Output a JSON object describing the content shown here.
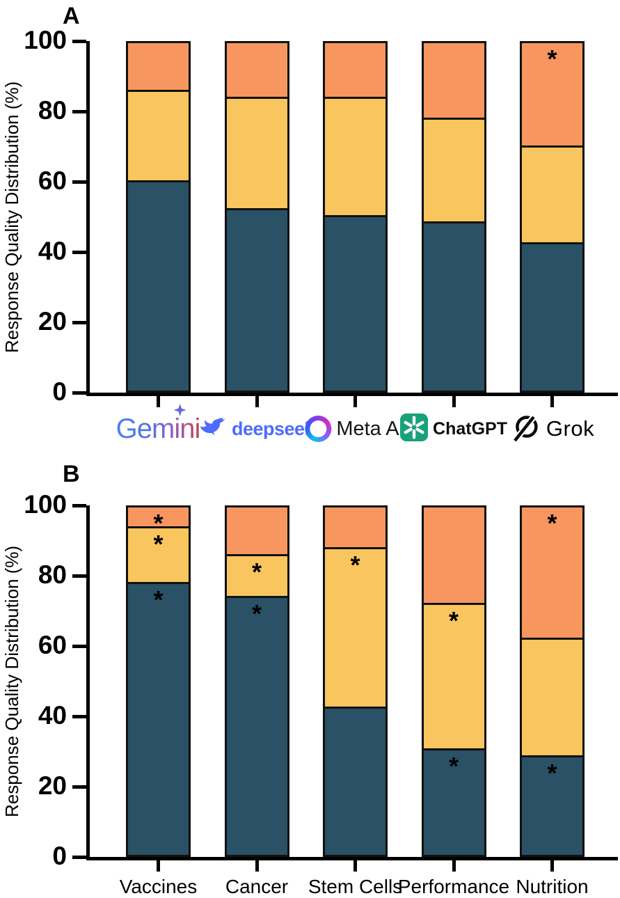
{
  "figure": {
    "panel_a_label": "A",
    "panel_b_label": "B",
    "y_axis_label": "Response Quality Distribution (%)",
    "y_ticks": [
      0,
      20,
      40,
      60,
      80,
      100
    ],
    "significance_marker": "*",
    "colors": {
      "segment_bottom": "#2A5165",
      "segment_middle": "#F9C55F",
      "segment_top": "#F7975F",
      "bar_outline": "#111111"
    }
  },
  "chart_data": [
    {
      "type": "bar",
      "stacked": true,
      "panel": "A",
      "title": "",
      "ylabel": "Response Quality Distribution (%)",
      "ylim": [
        0,
        100
      ],
      "grid": false,
      "legend": "none",
      "categories": [
        "Gemini",
        "deepseek",
        "Meta AI",
        "ChatGPT",
        "Grok"
      ],
      "series": [
        {
          "name": "segment-bottom",
          "color": "#2A5165",
          "values": [
            60,
            52,
            50,
            48,
            42
          ],
          "asterisk": [
            false,
            false,
            false,
            false,
            false
          ]
        },
        {
          "name": "segment-middle",
          "color": "#F9C55F",
          "values": [
            26,
            32,
            34,
            30,
            28
          ],
          "asterisk": [
            false,
            false,
            false,
            false,
            false
          ]
        },
        {
          "name": "segment-top",
          "color": "#F7975F",
          "values": [
            14,
            16,
            16,
            22,
            30
          ],
          "asterisk": [
            false,
            false,
            false,
            false,
            true
          ]
        }
      ]
    },
    {
      "type": "bar",
      "stacked": true,
      "panel": "B",
      "title": "",
      "ylabel": "Response Quality Distribution (%)",
      "ylim": [
        0,
        100
      ],
      "grid": false,
      "legend": "none",
      "categories": [
        "Vaccines",
        "Cancer",
        "Stem Cells",
        "Performance",
        "Nutrition"
      ],
      "series": [
        {
          "name": "segment-bottom",
          "color": "#2A5165",
          "values": [
            78,
            74,
            42,
            30,
            28
          ],
          "asterisk": [
            true,
            true,
            false,
            true,
            true
          ]
        },
        {
          "name": "segment-middle",
          "color": "#F9C55F",
          "values": [
            16,
            12,
            46,
            42,
            34
          ],
          "asterisk": [
            true,
            true,
            true,
            true,
            false
          ]
        },
        {
          "name": "segment-top",
          "color": "#F7975F",
          "values": [
            6,
            14,
            12,
            28,
            38
          ],
          "asterisk": [
            true,
            false,
            false,
            false,
            true
          ]
        }
      ]
    }
  ]
}
